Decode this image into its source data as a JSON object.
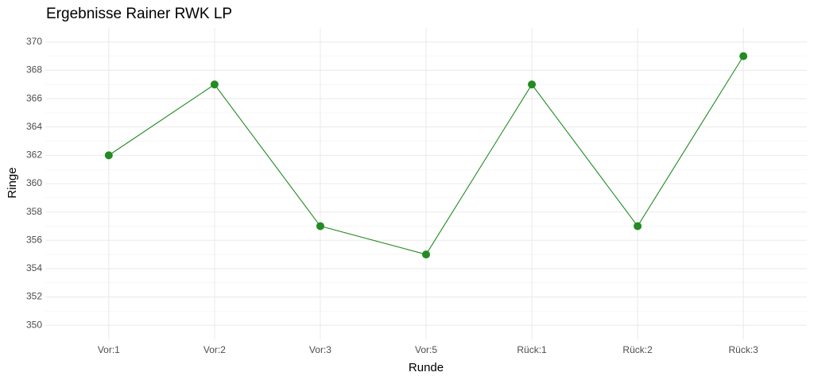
{
  "chart_data": {
    "type": "line",
    "title": "Ergebnisse Rainer RWK LP",
    "x_label": "Runde",
    "y_label": "Ringe",
    "categories": [
      "Vor:1",
      "Vor:2",
      "Vor:3",
      "Vor:5",
      "Rück:1",
      "Rück:2",
      "Rück:3"
    ],
    "values": [
      362,
      367,
      357,
      355,
      367,
      357,
      369
    ],
    "color": "#228b22",
    "ylim": [
      349,
      371
    ],
    "yticks": [
      350,
      352,
      354,
      356,
      358,
      360,
      362,
      364,
      366,
      368,
      370
    ],
    "grid": true
  }
}
